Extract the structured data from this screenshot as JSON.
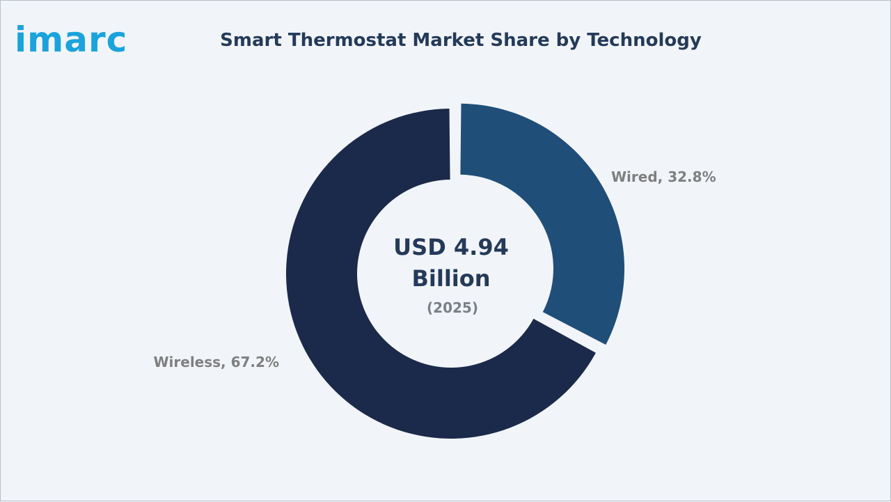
{
  "brand": {
    "logo_text": "imarc",
    "logo_color": "#1aa3dc"
  },
  "chart_data": {
    "type": "pie",
    "style": "donut",
    "title": "Smart Thermostat Market Share by Technology",
    "center_value": "USD 4.94",
    "center_unit": "Billion",
    "center_year": "(2025)",
    "slices": [
      {
        "name": "Wired",
        "value": 32.8,
        "label": "Wired, 32.8%",
        "color": "#1f4e79",
        "exploded": true
      },
      {
        "name": "Wireless",
        "value": 67.2,
        "label": "Wireless, 67.2%",
        "color": "#1b2a4a",
        "exploded": false
      }
    ]
  }
}
